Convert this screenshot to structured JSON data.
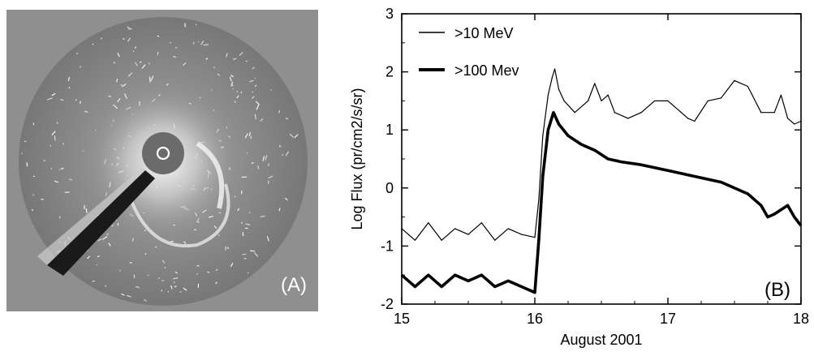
{
  "panel_a": {
    "label": "(A)"
  },
  "panel_b": {
    "label": "(B)"
  },
  "chart_data": {
    "type": "line",
    "xlabel": "August 2001",
    "ylabel": "Log Flux (pr/cm2/s/sr)",
    "xlim": [
      15,
      18
    ],
    "ylim": [
      -2,
      3
    ],
    "x_ticks": [
      15,
      16,
      17,
      18
    ],
    "y_ticks": [
      -2,
      -1,
      0,
      1,
      2,
      3
    ],
    "x_tick_labels": [
      "15",
      "16",
      "17",
      "18"
    ],
    "y_tick_labels": [
      "-2",
      "-1",
      "0",
      "1",
      "2",
      "3"
    ],
    "grid": false,
    "legend_position": "top-left",
    "series": [
      {
        "name": ">10 MeV",
        "color": "#000000",
        "line_width": "thin",
        "points": [
          [
            15.0,
            -0.7
          ],
          [
            15.1,
            -0.9
          ],
          [
            15.2,
            -0.6
          ],
          [
            15.3,
            -0.9
          ],
          [
            15.4,
            -0.7
          ],
          [
            15.5,
            -0.8
          ],
          [
            15.6,
            -0.6
          ],
          [
            15.7,
            -0.9
          ],
          [
            15.8,
            -0.7
          ],
          [
            15.9,
            -0.8
          ],
          [
            16.0,
            -0.85
          ],
          [
            16.03,
            -0.2
          ],
          [
            16.06,
            0.9
          ],
          [
            16.1,
            1.6
          ],
          [
            16.13,
            1.9
          ],
          [
            16.15,
            2.05
          ],
          [
            16.18,
            1.7
          ],
          [
            16.22,
            1.5
          ],
          [
            16.3,
            1.3
          ],
          [
            16.4,
            1.5
          ],
          [
            16.45,
            1.8
          ],
          [
            16.5,
            1.5
          ],
          [
            16.55,
            1.6
          ],
          [
            16.6,
            1.3
          ],
          [
            16.7,
            1.2
          ],
          [
            16.8,
            1.3
          ],
          [
            16.9,
            1.5
          ],
          [
            17.0,
            1.5
          ],
          [
            17.1,
            1.3
          ],
          [
            17.15,
            1.2
          ],
          [
            17.2,
            1.15
          ],
          [
            17.3,
            1.5
          ],
          [
            17.4,
            1.55
          ],
          [
            17.5,
            1.85
          ],
          [
            17.55,
            1.8
          ],
          [
            17.6,
            1.75
          ],
          [
            17.7,
            1.3
          ],
          [
            17.8,
            1.3
          ],
          [
            17.85,
            1.6
          ],
          [
            17.9,
            1.2
          ],
          [
            17.95,
            1.1
          ],
          [
            18.0,
            1.15
          ]
        ]
      },
      {
        "name": ">100 Mev",
        "color": "#000000",
        "line_width": "thick",
        "points": [
          [
            15.0,
            -1.5
          ],
          [
            15.1,
            -1.7
          ],
          [
            15.2,
            -1.5
          ],
          [
            15.3,
            -1.7
          ],
          [
            15.4,
            -1.5
          ],
          [
            15.5,
            -1.6
          ],
          [
            15.6,
            -1.5
          ],
          [
            15.7,
            -1.7
          ],
          [
            15.8,
            -1.6
          ],
          [
            15.9,
            -1.7
          ],
          [
            16.0,
            -1.8
          ],
          [
            16.03,
            -0.9
          ],
          [
            16.06,
            0.2
          ],
          [
            16.1,
            1.0
          ],
          [
            16.14,
            1.3
          ],
          [
            16.18,
            1.1
          ],
          [
            16.25,
            0.9
          ],
          [
            16.35,
            0.75
          ],
          [
            16.45,
            0.65
          ],
          [
            16.55,
            0.5
          ],
          [
            16.65,
            0.45
          ],
          [
            16.8,
            0.4
          ],
          [
            17.0,
            0.3
          ],
          [
            17.2,
            0.2
          ],
          [
            17.4,
            0.1
          ],
          [
            17.6,
            -0.1
          ],
          [
            17.7,
            -0.3
          ],
          [
            17.75,
            -0.5
          ],
          [
            17.8,
            -0.45
          ],
          [
            17.9,
            -0.3
          ],
          [
            17.95,
            -0.5
          ],
          [
            18.0,
            -0.65
          ]
        ]
      }
    ]
  }
}
